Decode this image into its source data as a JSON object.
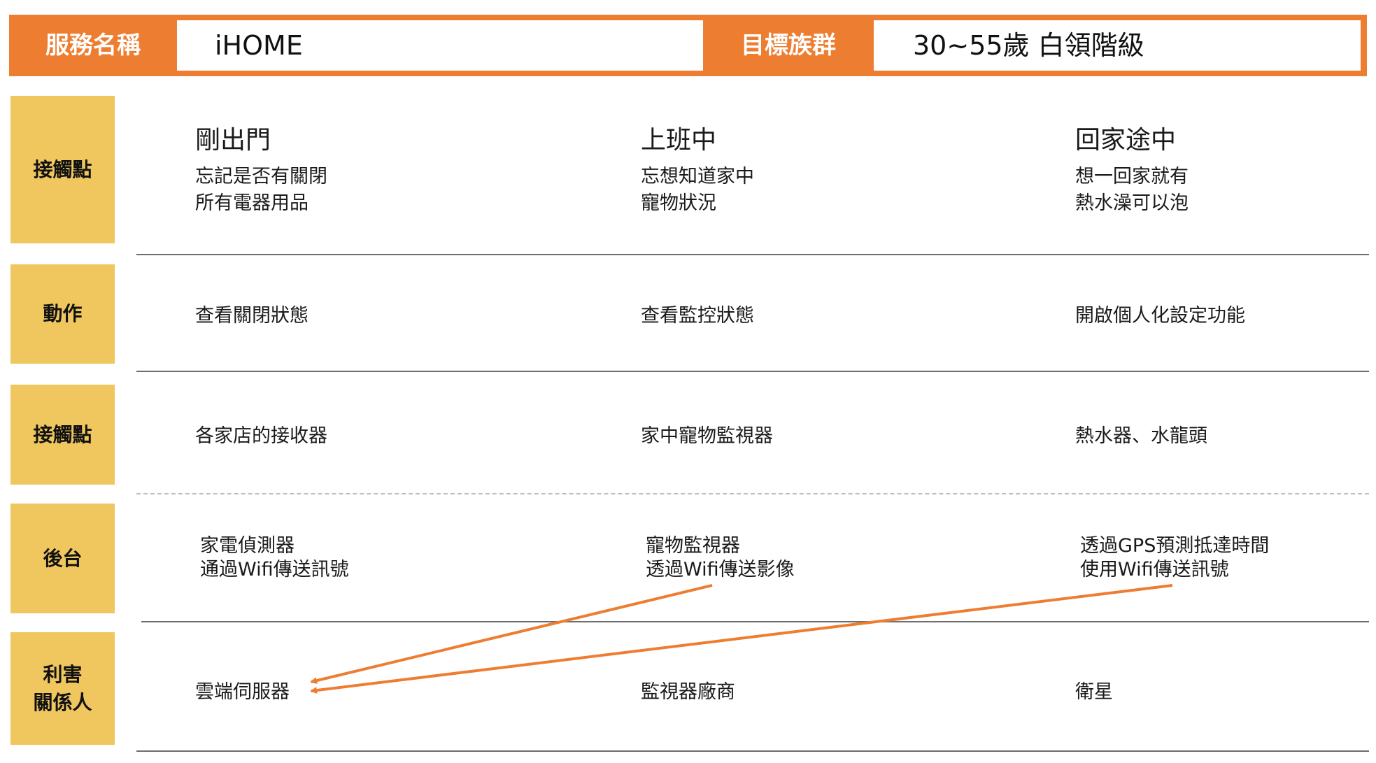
{
  "header": {
    "service_label": "服務名稱",
    "service_value": "iHOME",
    "target_label": "目標族群",
    "target_value": "30~55歲 白領階級"
  },
  "rows": [
    {
      "label": "接觸點",
      "cells": [
        {
          "title": "剛出門",
          "lines": [
            "忘記是否有關閉",
            "所有電器用品"
          ]
        },
        {
          "title": "上班中",
          "lines": [
            "忘想知道家中",
            "寵物狀況"
          ]
        },
        {
          "title": "回家途中",
          "lines": [
            "想一回家就有",
            "熱水澡可以泡"
          ]
        }
      ]
    },
    {
      "label": "動作",
      "cells": [
        {
          "lines": [
            "查看關閉狀態"
          ]
        },
        {
          "lines": [
            "查看監控狀態"
          ]
        },
        {
          "lines": [
            "開啟個人化設定功能"
          ]
        }
      ]
    },
    {
      "label": "接觸點",
      "cells": [
        {
          "lines": [
            "各家店的接收器"
          ]
        },
        {
          "lines": [
            "家中寵物監視器"
          ]
        },
        {
          "lines": [
            "熱水器、水龍頭"
          ]
        }
      ]
    },
    {
      "label": "後台",
      "cells": [
        {
          "lines": [
            "家電偵測器",
            "通過Wifi傳送訊號"
          ]
        },
        {
          "lines": [
            "寵物監視器",
            "透過Wifi傳送影像"
          ]
        },
        {
          "lines": [
            "透過GPS預測抵達時間",
            "使用Wifi傳送訊號"
          ]
        }
      ]
    },
    {
      "label_lines": [
        "利害",
        "關係人"
      ],
      "cells": [
        {
          "lines": [
            "雲端伺服器"
          ]
        },
        {
          "lines": [
            "監視器廠商"
          ]
        },
        {
          "lines": [
            "衛星"
          ]
        }
      ]
    }
  ],
  "colors": {
    "header_orange": "#ED7D31",
    "label_yellow": "#F0C75E",
    "arrow": "#ED7D31"
  }
}
